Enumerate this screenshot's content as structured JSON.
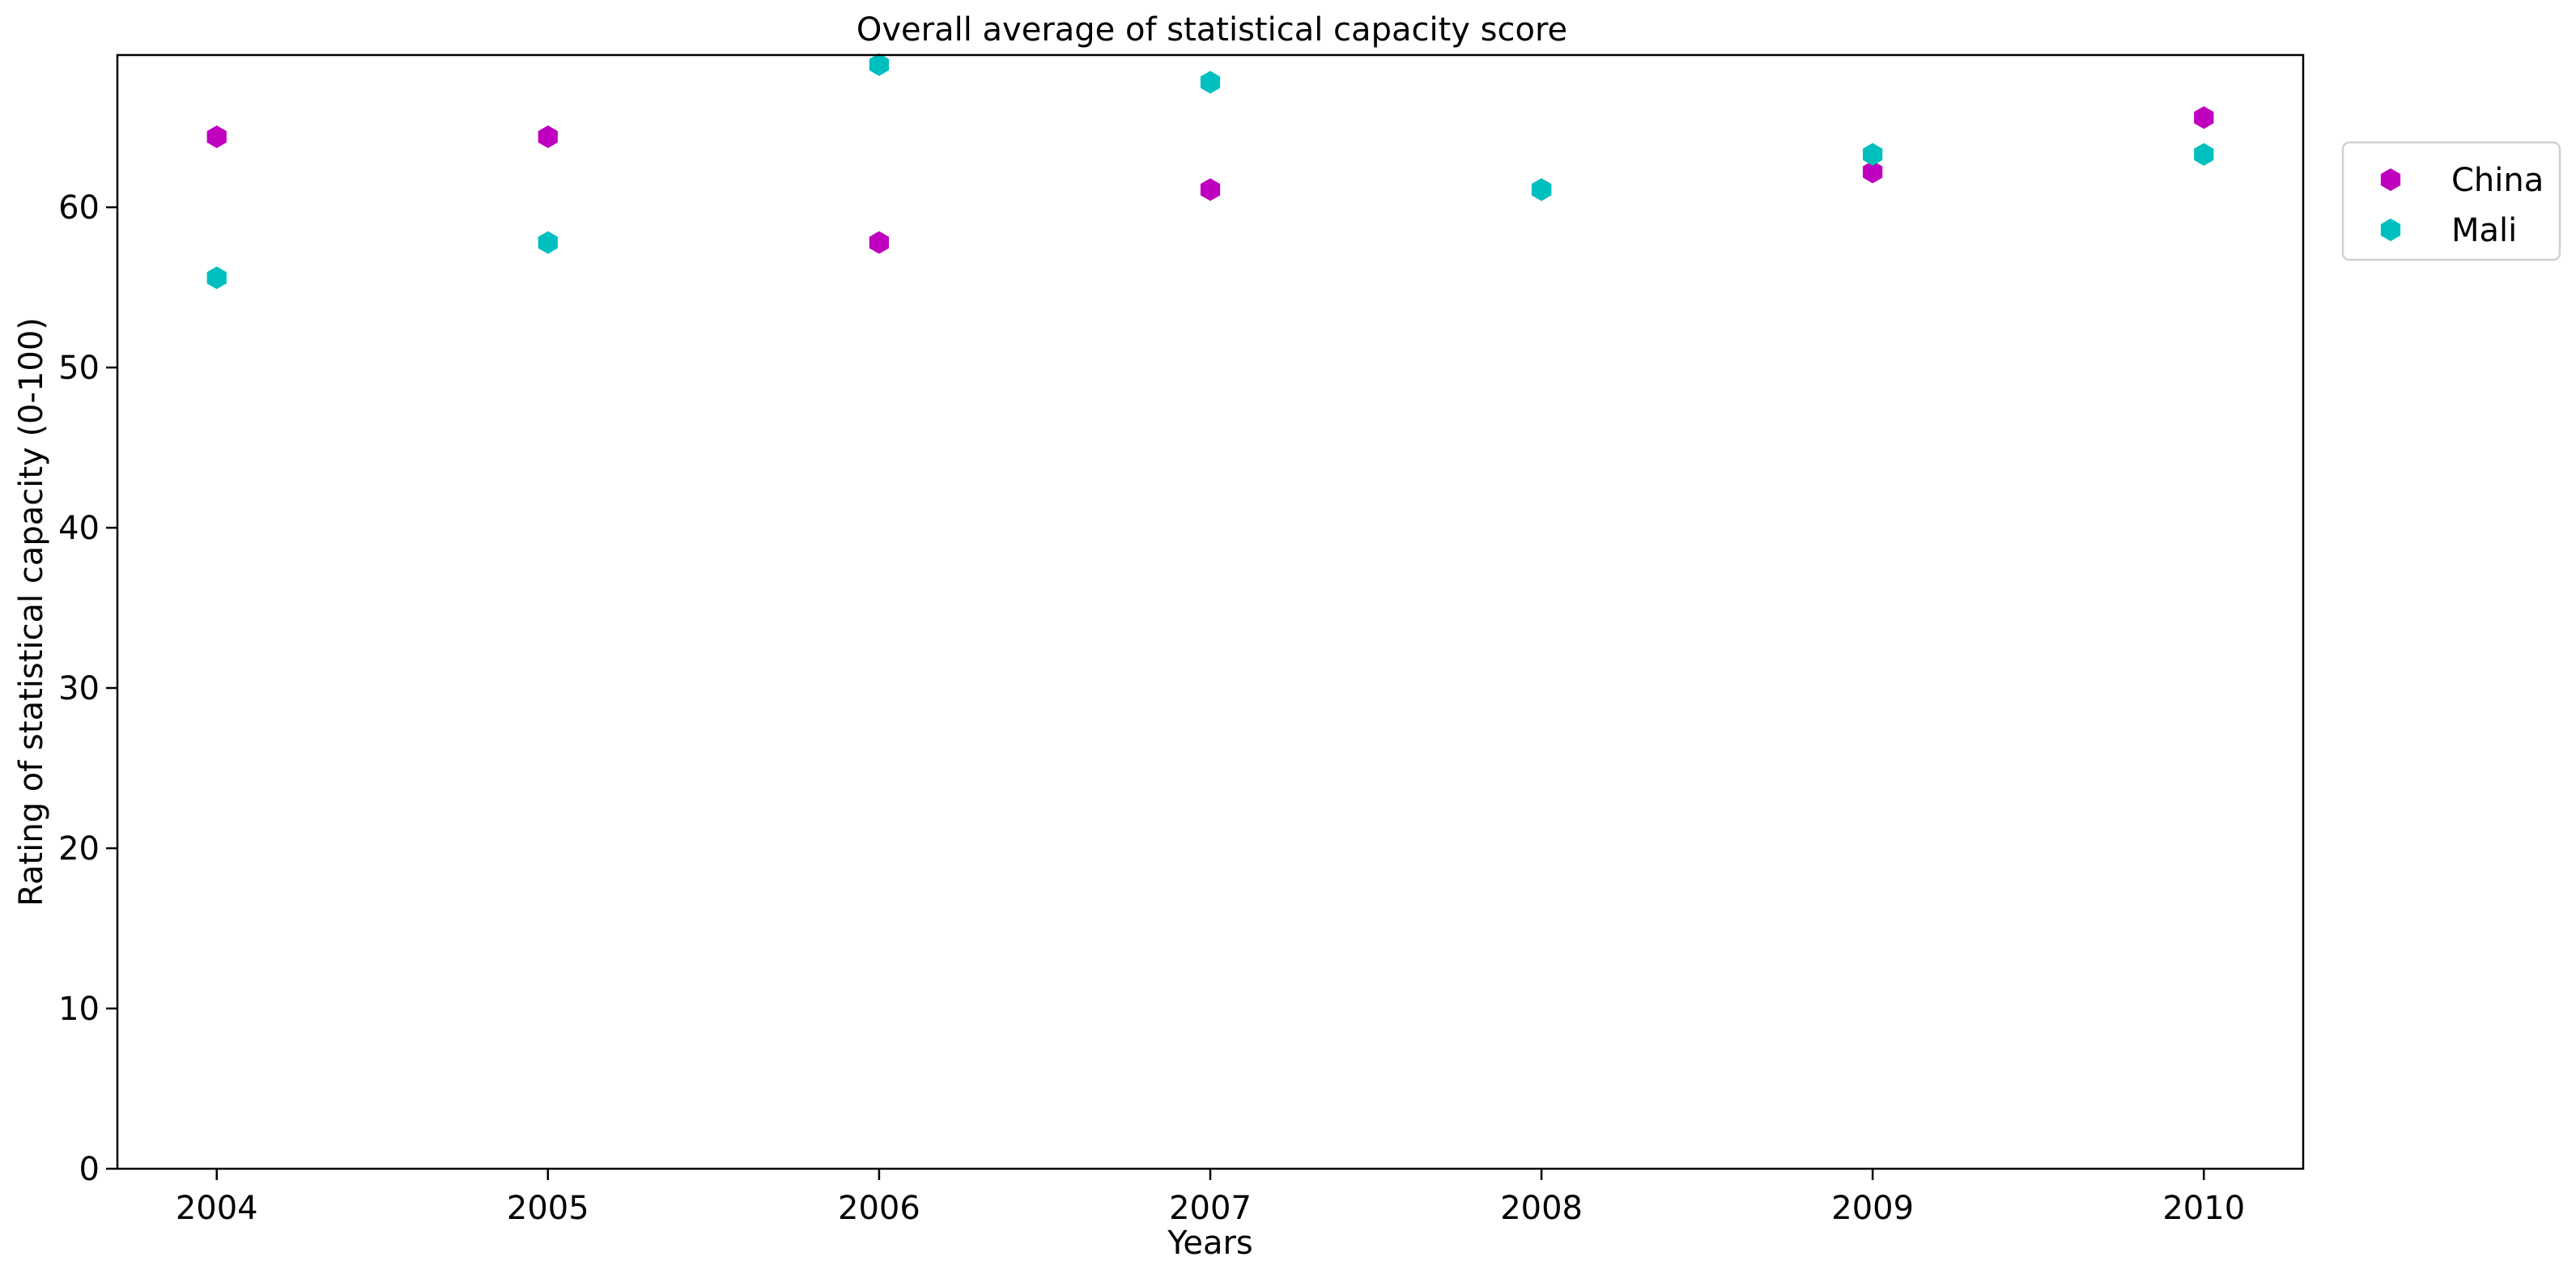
{
  "chart_data": {
    "type": "scatter",
    "title": "Overall average of statistical capacity score",
    "xlabel": "Years",
    "ylabel": "Rating of statistical capacity (0-100)",
    "x": [
      "2004",
      "2005",
      "2006",
      "2007",
      "2008",
      "2009",
      "2010"
    ],
    "xlim": [
      2003.7,
      2010.3
    ],
    "ylim": [
      0,
      69.5
    ],
    "yticks": [
      0,
      10,
      20,
      30,
      40,
      50,
      60
    ],
    "grid": false,
    "legend_position": "right, outside plot (upper)",
    "marker": "hexagon",
    "series": [
      {
        "name": "China",
        "color": "#bf00bf",
        "values": [
          64.4,
          64.4,
          57.8,
          61.1,
          61.1,
          62.2,
          65.6
        ]
      },
      {
        "name": "Mali",
        "color": "#00bfbf",
        "values": [
          55.6,
          57.8,
          68.9,
          67.8,
          61.1,
          63.3,
          63.3
        ]
      }
    ]
  }
}
